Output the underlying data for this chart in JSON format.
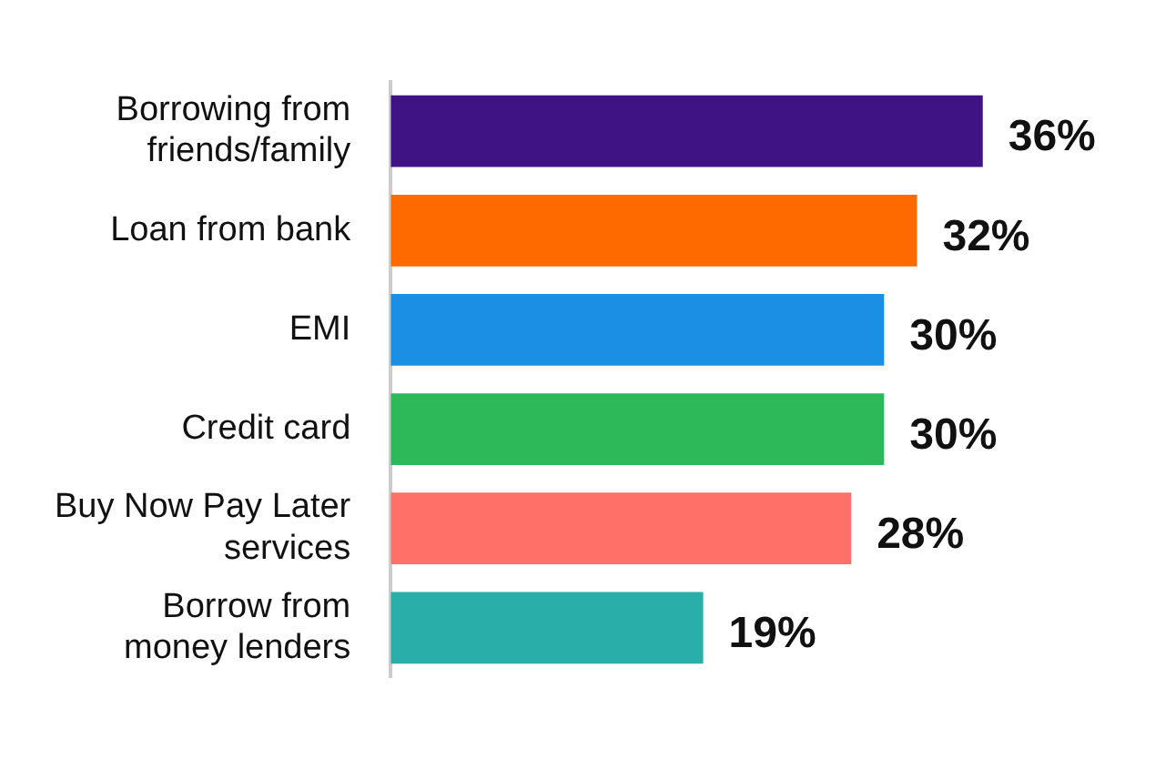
{
  "chart_data": {
    "type": "bar",
    "orientation": "horizontal",
    "categories": [
      "Borrowing from friends/family",
      "Loan from bank",
      "EMI",
      "Credit card",
      "Buy Now Pay Later services",
      "Borrow from money lenders"
    ],
    "values": [
      36,
      32,
      30,
      30,
      28,
      19
    ],
    "colors": [
      "#3f1384",
      "#ff6a00",
      "#1a8fe3",
      "#2db95a",
      "#ff7068",
      "#2aaeaa"
    ],
    "value_labels": [
      "36%",
      "32%",
      "30%",
      "30%",
      "28%",
      "19%"
    ],
    "tick_labels": "y",
    "legend": false
  }
}
